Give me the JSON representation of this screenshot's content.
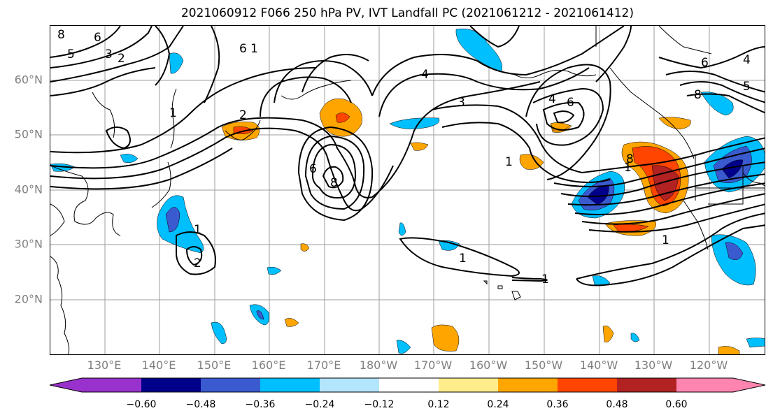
{
  "title": "2021060912 F066 250 hPa PV, IVT Landfall PC (2021061212 - 2021061412)",
  "lat_labels": [
    "60°N",
    "50°N",
    "40°N",
    "30°N",
    "20°N"
  ],
  "lon_labels": [
    "130°E",
    "140°E",
    "150°E",
    "160°E",
    "170°E",
    "180°W",
    "170°W",
    "160°W",
    "150°W",
    "140°W",
    "130°W",
    "120°W"
  ],
  "colorbar": {
    "colors": [
      "#9932cc",
      "#00008b",
      "#3a5bd0",
      "#00bfff",
      "#b3e5fc",
      "#ffffff",
      "#ffec8b",
      "#ffa500",
      "#ff4500",
      "#b22222",
      "#ff85b0"
    ],
    "tick_labels": [
      "−0.60",
      "−0.48",
      "−0.36",
      "−0.24",
      "−0.12",
      "0.12",
      "0.24",
      "0.36",
      "0.48",
      "0.60"
    ]
  },
  "contour_labels": [
    "8",
    "6",
    "5",
    "3",
    "2",
    "6",
    "1",
    "1",
    "2",
    "6",
    "8",
    "4",
    "3",
    "1",
    "4",
    "6",
    "8",
    "4",
    "6",
    "5",
    "8",
    "1",
    "1",
    "2",
    "1",
    "1",
    "1"
  ]
}
